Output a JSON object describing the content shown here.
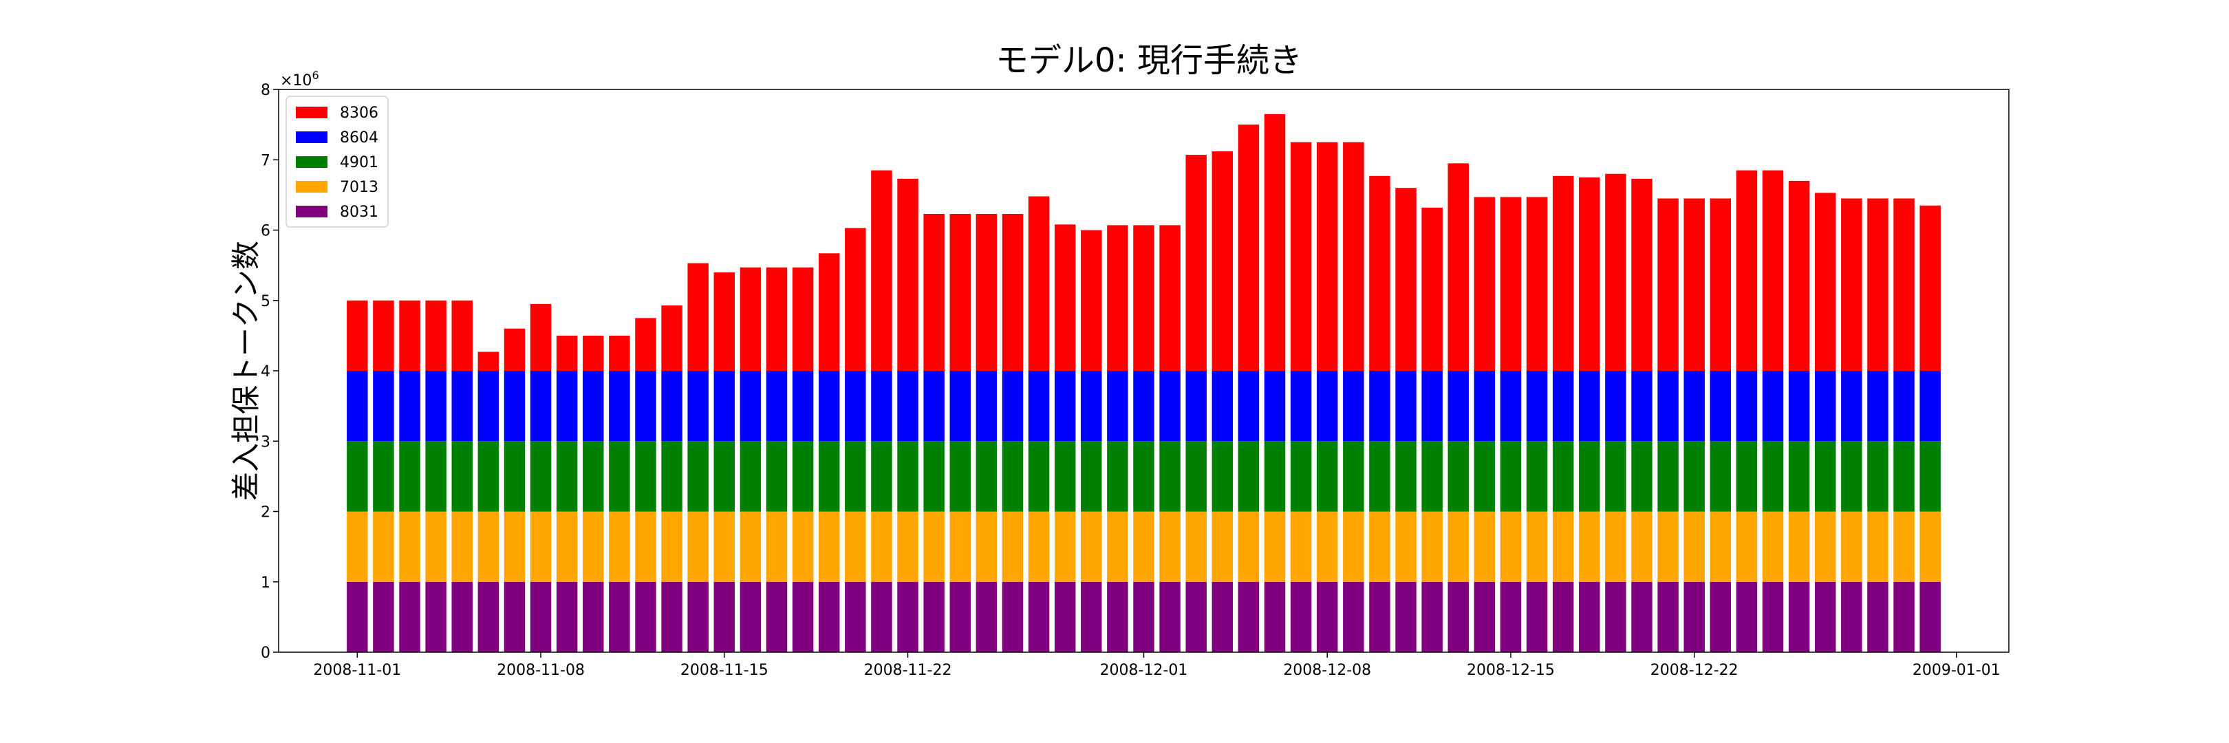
{
  "chart_data": {
    "type": "bar",
    "stacked": true,
    "title": "モデル0: 現行手続き",
    "ylabel": "差入担保トークン数",
    "xlabel": "",
    "y_multiplier": "×10",
    "y_multiplier_exp": "6",
    "ylim": [
      0,
      8
    ],
    "yticks": [
      0,
      1,
      2,
      3,
      4,
      5,
      6,
      7,
      8
    ],
    "xlim": [
      "2008-10-29",
      "2009-01-03"
    ],
    "xticks": [
      "2008-11-01",
      "2008-11-08",
      "2008-11-15",
      "2008-11-22",
      "2008-12-01",
      "2008-12-08",
      "2008-12-15",
      "2008-12-22",
      "2009-01-01"
    ],
    "grid": false,
    "legend_position": "top-left",
    "x": [
      "2008-11-01",
      "2008-11-02",
      "2008-11-03",
      "2008-11-04",
      "2008-11-05",
      "2008-11-06",
      "2008-11-07",
      "2008-11-08",
      "2008-11-09",
      "2008-11-10",
      "2008-11-11",
      "2008-11-12",
      "2008-11-13",
      "2008-11-14",
      "2008-11-15",
      "2008-11-16",
      "2008-11-17",
      "2008-11-18",
      "2008-11-19",
      "2008-11-20",
      "2008-11-21",
      "2008-11-22",
      "2008-11-23",
      "2008-11-24",
      "2008-11-25",
      "2008-11-26",
      "2008-11-27",
      "2008-11-28",
      "2008-11-29",
      "2008-11-30",
      "2008-12-01",
      "2008-12-02",
      "2008-12-03",
      "2008-12-04",
      "2008-12-05",
      "2008-12-06",
      "2008-12-07",
      "2008-12-08",
      "2008-12-09",
      "2008-12-10",
      "2008-12-11",
      "2008-12-12",
      "2008-12-13",
      "2008-12-14",
      "2008-12-15",
      "2008-12-16",
      "2008-12-17",
      "2008-12-18",
      "2008-12-19",
      "2008-12-20",
      "2008-12-21",
      "2008-12-22",
      "2008-12-23",
      "2008-12-24",
      "2008-12-25",
      "2008-12-26",
      "2008-12-27",
      "2008-12-28",
      "2008-12-29",
      "2008-12-30",
      "2008-12-31"
    ],
    "series": [
      {
        "name": "8031",
        "color": "#800080",
        "values": [
          1,
          1,
          1,
          1,
          1,
          1,
          1,
          1,
          1,
          1,
          1,
          1,
          1,
          1,
          1,
          1,
          1,
          1,
          1,
          1,
          1,
          1,
          1,
          1,
          1,
          1,
          1,
          1,
          1,
          1,
          1,
          1,
          1,
          1,
          1,
          1,
          1,
          1,
          1,
          1,
          1,
          1,
          1,
          1,
          1,
          1,
          1,
          1,
          1,
          1,
          1,
          1,
          1,
          1,
          1,
          1,
          1,
          1,
          1,
          1,
          1
        ]
      },
      {
        "name": "7013",
        "color": "#ffa500",
        "values": [
          1,
          1,
          1,
          1,
          1,
          1,
          1,
          1,
          1,
          1,
          1,
          1,
          1,
          1,
          1,
          1,
          1,
          1,
          1,
          1,
          1,
          1,
          1,
          1,
          1,
          1,
          1,
          1,
          1,
          1,
          1,
          1,
          1,
          1,
          1,
          1,
          1,
          1,
          1,
          1,
          1,
          1,
          1,
          1,
          1,
          1,
          1,
          1,
          1,
          1,
          1,
          1,
          1,
          1,
          1,
          1,
          1,
          1,
          1,
          1,
          1
        ]
      },
      {
        "name": "4901",
        "color": "#008000",
        "values": [
          1,
          1,
          1,
          1,
          1,
          1,
          1,
          1,
          1,
          1,
          1,
          1,
          1,
          1,
          1,
          1,
          1,
          1,
          1,
          1,
          1,
          1,
          1,
          1,
          1,
          1,
          1,
          1,
          1,
          1,
          1,
          1,
          1,
          1,
          1,
          1,
          1,
          1,
          1,
          1,
          1,
          1,
          1,
          1,
          1,
          1,
          1,
          1,
          1,
          1,
          1,
          1,
          1,
          1,
          1,
          1,
          1,
          1,
          1,
          1,
          1
        ]
      },
      {
        "name": "8604",
        "color": "#0000ff",
        "values": [
          1,
          1,
          1,
          1,
          1,
          1,
          1,
          1,
          1,
          1,
          1,
          1,
          1,
          1,
          1,
          1,
          1,
          1,
          1,
          1,
          1,
          1,
          1,
          1,
          1,
          1,
          1,
          1,
          1,
          1,
          1,
          1,
          1,
          1,
          1,
          1,
          1,
          1,
          1,
          1,
          1,
          1,
          1,
          1,
          1,
          1,
          1,
          1,
          1,
          1,
          1,
          1,
          1,
          1,
          1,
          1,
          1,
          1,
          1,
          1,
          1
        ]
      },
      {
        "name": "8306",
        "color": "#ff0000",
        "values": [
          1.0,
          1.0,
          1.0,
          1.0,
          1.0,
          0.27,
          0.6,
          0.95,
          0.5,
          0.5,
          0.5,
          0.75,
          0.93,
          1.53,
          1.4,
          1.47,
          1.47,
          1.47,
          1.67,
          2.03,
          2.85,
          2.73,
          2.23,
          2.23,
          2.23,
          2.23,
          2.48,
          2.08,
          2.0,
          2.07,
          2.07,
          2.07,
          3.07,
          3.12,
          3.5,
          3.65,
          3.25,
          3.25,
          3.25,
          2.77,
          2.6,
          2.32,
          2.95,
          2.47,
          2.47,
          2.47,
          2.77,
          2.75,
          2.8,
          2.73,
          2.45,
          2.45,
          2.45,
          2.85,
          2.85,
          2.7,
          2.53,
          2.45,
          2.45,
          2.45,
          2.35
        ]
      }
    ]
  }
}
